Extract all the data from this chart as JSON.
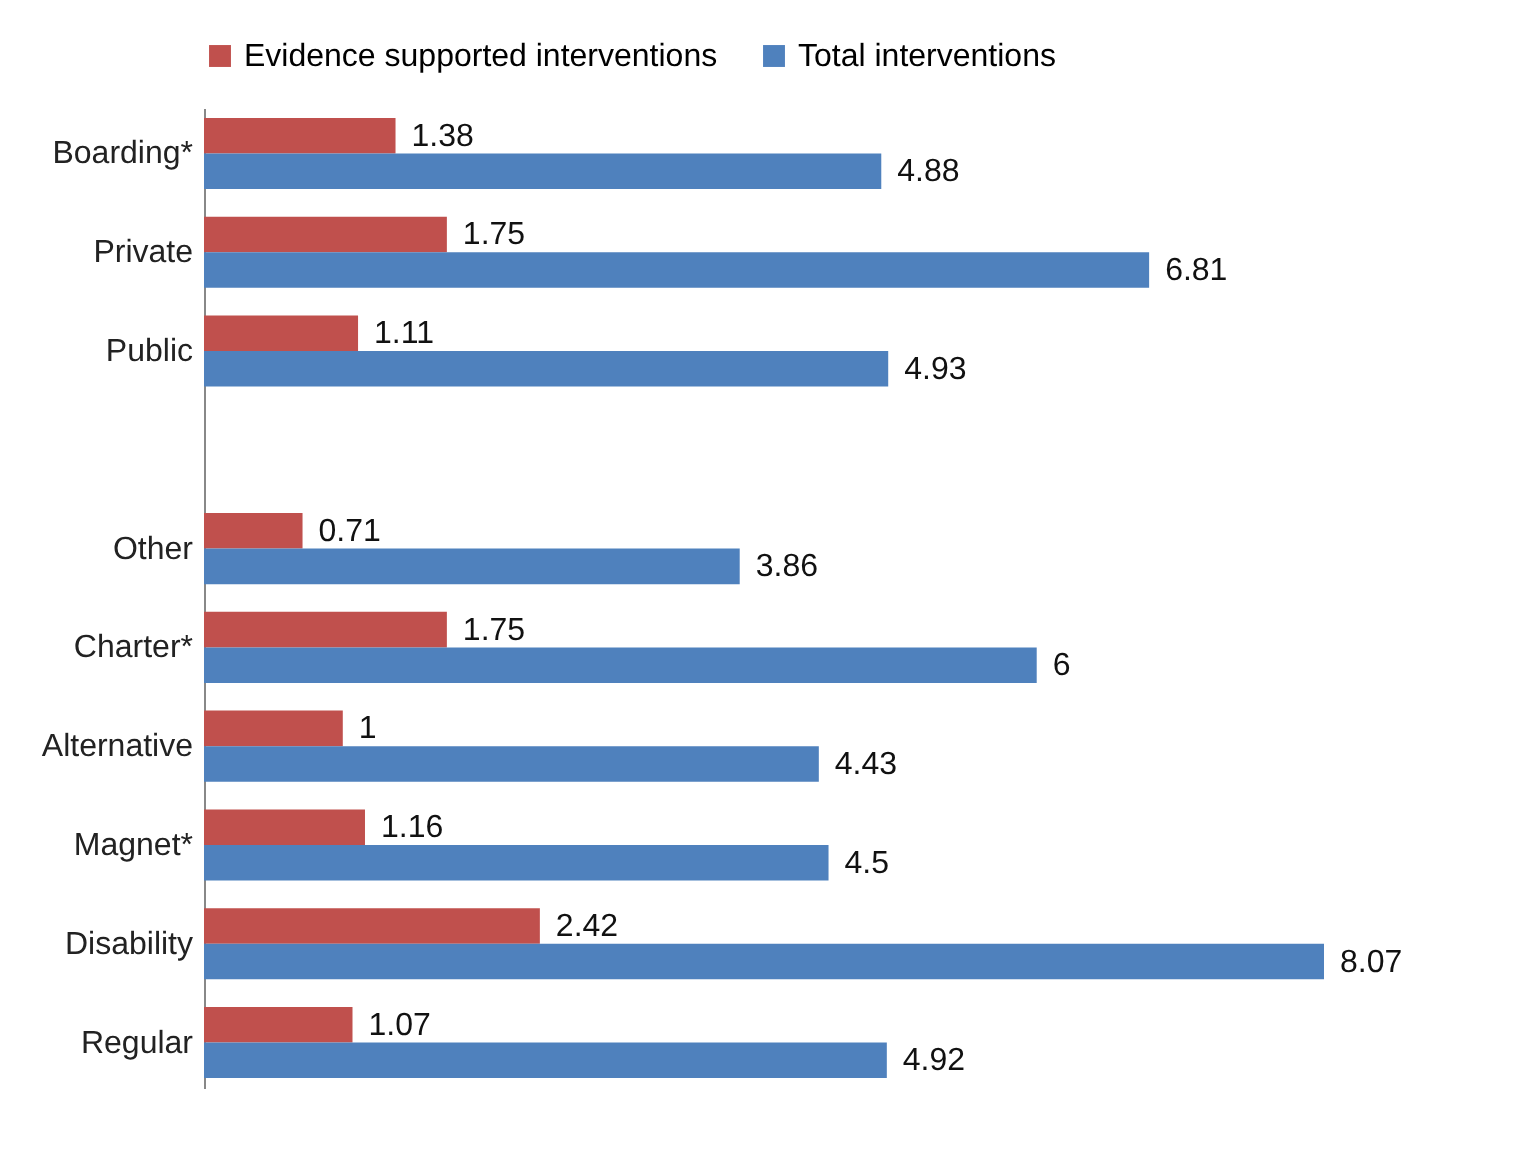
{
  "chart_data": {
    "type": "bar",
    "orientation": "horizontal",
    "categories": [
      "Boarding*",
      "Private",
      "Public",
      null,
      "Other",
      "Charter*",
      "Alternative",
      "Magnet*",
      "Disability",
      "Regular"
    ],
    "series": [
      {
        "name": "Evidence supported interventions",
        "color": "#c0504d",
        "values": [
          1.38,
          1.75,
          1.11,
          null,
          0.71,
          1.75,
          1,
          1.16,
          2.42,
          1.07
        ]
      },
      {
        "name": "Total interventions",
        "color": "#4f81bd",
        "values": [
          4.88,
          6.81,
          4.93,
          null,
          3.86,
          6,
          4.43,
          4.5,
          8.07,
          4.92
        ]
      }
    ],
    "data_labels": true,
    "legend": "top",
    "grid": false
  }
}
